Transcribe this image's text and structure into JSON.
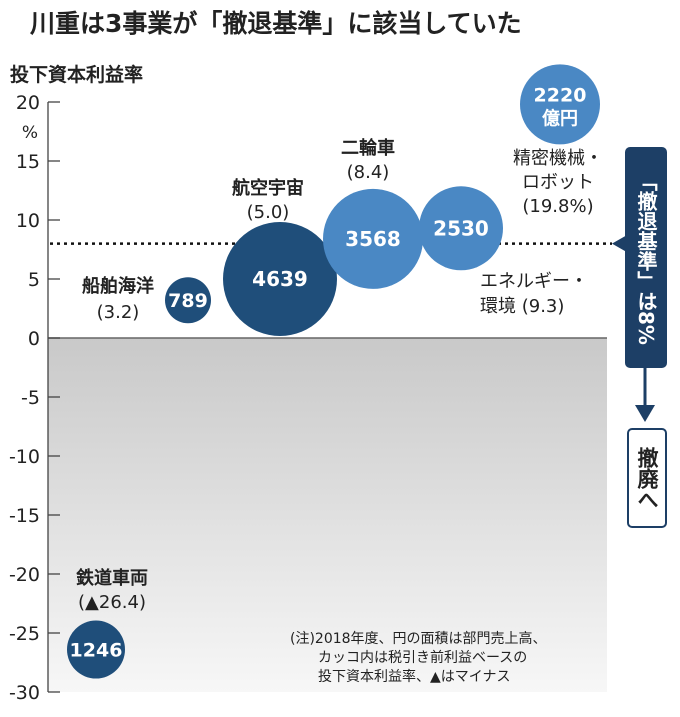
{
  "title": "川重は3事業が「撤退基準」に該当していた",
  "chart_data": {
    "type": "bubble",
    "ylabel": "投下資本利益率",
    "yunit": "%",
    "ylim": [
      -30,
      20
    ],
    "yticks": [
      20,
      15,
      10,
      5,
      0,
      -5,
      -10,
      -15,
      -20,
      -25,
      -30
    ],
    "threshold": {
      "value": 8,
      "label": "「撤退基準」は8%",
      "below_label": "撤廃へ"
    },
    "size_note": "億円",
    "points": [
      {
        "name": "船舶海洋",
        "label": "(3.2)",
        "y": 3.2,
        "size": 789,
        "color": "#1f4e7a"
      },
      {
        "name": "航空宇宙",
        "label": "(5.0)",
        "y": 5.0,
        "size": 4639,
        "color": "#1f4e7a"
      },
      {
        "name": "二輪車",
        "label": "(8.4)",
        "y": 8.4,
        "size": 3568,
        "color": "#4a88c4"
      },
      {
        "name": "エネルギー・環境",
        "label": "(9.3)",
        "y": 9.3,
        "size": 2530,
        "color": "#4a88c4"
      },
      {
        "name": "精密機械・ロボット",
        "label": "(19.8%)",
        "y": 19.8,
        "size": 2220,
        "color": "#4a88c4"
      },
      {
        "name": "鉄道車両",
        "label": "(▲26.4)",
        "y": -26.4,
        "size": 1246,
        "color": "#1f4e7a"
      }
    ],
    "note": "(注)2018年度、円の面積は部門売上高、\n　　カッコ内は税引き前利益ベースの\n　　投下資本利益率、▲はマイナス"
  }
}
